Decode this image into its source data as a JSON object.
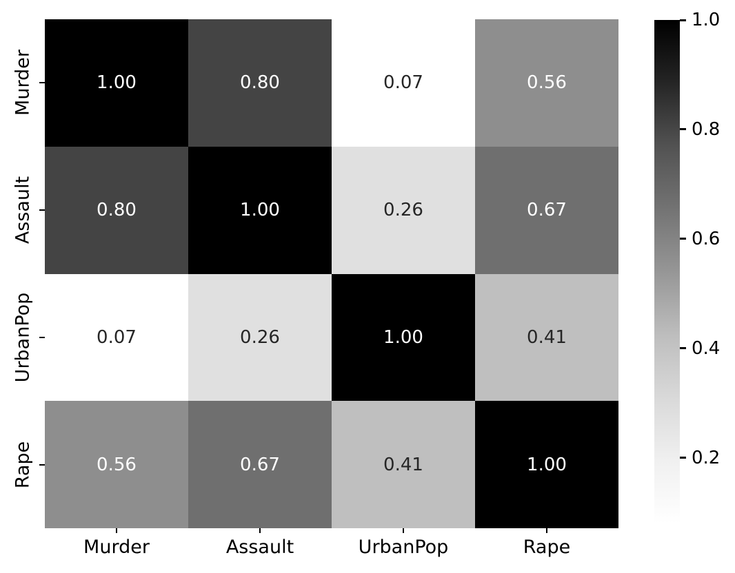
{
  "chart_data": {
    "type": "heatmap",
    "title": "",
    "description": "Correlation matrix heatmap with grayscale (Greys) colormap and vertical colorbar on the right",
    "x_tick_labels": [
      "Murder",
      "Assault",
      "UrbanPop",
      "Rape"
    ],
    "y_tick_labels": [
      "Murder",
      "Assault",
      "UrbanPop",
      "Rape"
    ],
    "matrix": [
      [
        1.0,
        0.8,
        0.07,
        0.56
      ],
      [
        0.8,
        1.0,
        0.26,
        0.67
      ],
      [
        0.07,
        0.26,
        1.0,
        0.41
      ],
      [
        0.56,
        0.67,
        0.41,
        1.0
      ]
    ],
    "cell_labels": [
      [
        "1.00",
        "0.80",
        "0.07",
        "0.56"
      ],
      [
        "0.80",
        "1.00",
        "0.26",
        "0.67"
      ],
      [
        "0.07",
        "0.26",
        "1.00",
        "0.41"
      ],
      [
        "0.56",
        "0.67",
        "0.41",
        "1.00"
      ]
    ],
    "cell_colors": [
      [
        "#000000",
        "#444444",
        "#ffffff",
        "#8e8e8e"
      ],
      [
        "#444444",
        "#000000",
        "#e0e0e0",
        "#6f6f6f"
      ],
      [
        "#ffffff",
        "#e0e0e0",
        "#000000",
        "#bfbfbf"
      ],
      [
        "#8e8e8e",
        "#6f6f6f",
        "#bfbfbf",
        "#000000"
      ]
    ],
    "annotation_colors": [
      [
        "#ffffff",
        "#ffffff",
        "#262626",
        "#ffffff"
      ],
      [
        "#ffffff",
        "#ffffff",
        "#262626",
        "#ffffff"
      ],
      [
        "#262626",
        "#262626",
        "#ffffff",
        "#262626"
      ],
      [
        "#ffffff",
        "#ffffff",
        "#262626",
        "#ffffff"
      ]
    ],
    "colormap": "Greys",
    "grid": false,
    "legend": false,
    "colors": {
      "background": "#ffffff",
      "tick_text": "#000000",
      "annotation_light": "#ffffff",
      "annotation_dark": "#262626"
    },
    "colorbar": {
      "position": "right",
      "tick_labels": [
        "1.0",
        "0.8",
        "0.6",
        "0.4",
        "0.2"
      ],
      "tick_values": [
        1.0,
        0.8,
        0.6,
        0.4,
        0.2
      ],
      "gradient_colors_top_to_bottom": [
        "#000000",
        "#252525",
        "#525252",
        "#737373",
        "#969696",
        "#bdbdbd",
        "#d9d9d9",
        "#f0f0f0",
        "#ffffff"
      ]
    }
  }
}
